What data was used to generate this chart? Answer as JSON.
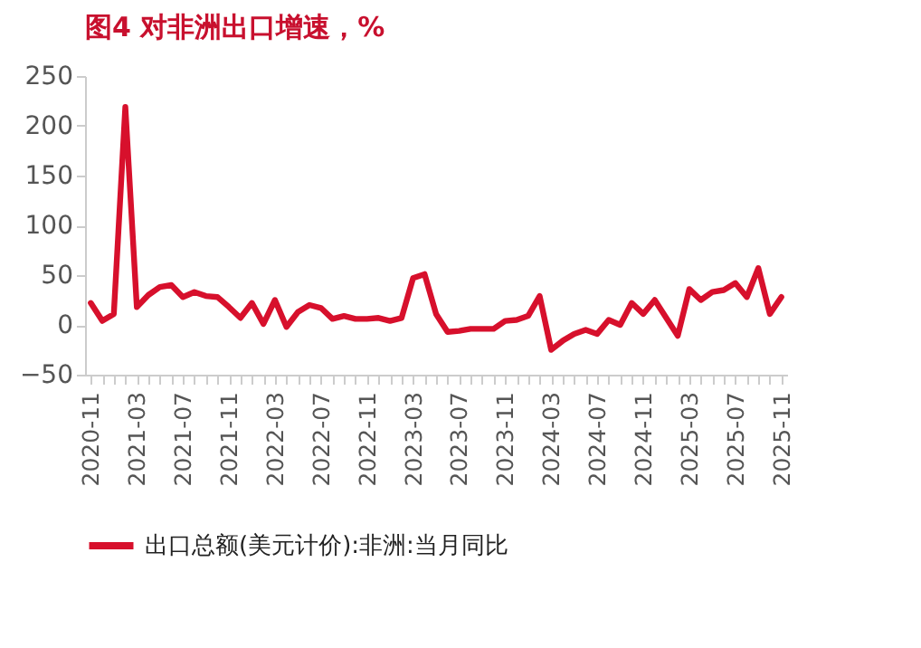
{
  "chart_data": {
    "type": "line",
    "title": "图4  对非洲出口增速，%",
    "categories": [
      "2020-11",
      null,
      null,
      null,
      "2021-03",
      null,
      null,
      null,
      "2021-07",
      null,
      null,
      null,
      "2021-11",
      null,
      null,
      null,
      "2022-03",
      null,
      null,
      null,
      "2022-07",
      null,
      null,
      null,
      "2022-11",
      null,
      null,
      null,
      "2023-03",
      null,
      null,
      null,
      "2023-07",
      null,
      null,
      null,
      "2023-11",
      null,
      null,
      null,
      "2024-03",
      null,
      null,
      null,
      "2024-07",
      null,
      null,
      null,
      "2024-11",
      null,
      null,
      null,
      "2025-03",
      null,
      null,
      null,
      "2025-07",
      null,
      null,
      null,
      "2025-11"
    ],
    "series": [
      {
        "name": "出口总额(美元计价):非洲:当月同比",
        "color": "#d7102c",
        "values": [
          22,
          4,
          11,
          219,
          18,
          30,
          38,
          40,
          28,
          33,
          29,
          28,
          18,
          7,
          22,
          1,
          25,
          -2,
          13,
          20,
          17,
          6,
          9,
          6,
          6,
          7,
          4,
          7,
          47,
          51,
          11,
          -7,
          -6,
          -4,
          -4,
          -4,
          4,
          5,
          9,
          29,
          -25,
          -16,
          -9,
          -5,
          -9,
          5,
          0,
          22,
          11,
          25,
          7,
          -11,
          36,
          25,
          33,
          35,
          42,
          28,
          57,
          11,
          28
        ]
      }
    ],
    "ylim": [
      -50,
      250
    ],
    "yticks": [
      -50,
      0,
      50,
      100,
      150,
      200,
      250
    ],
    "grid": false,
    "legend": "bottom",
    "marker": "none",
    "line_style": "solid"
  }
}
